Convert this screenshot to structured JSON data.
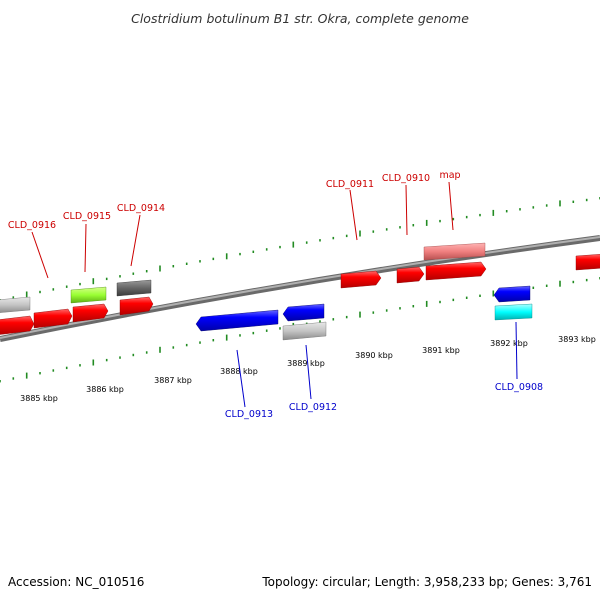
{
  "title": "Clostridium botulinum B1 str. Okra, complete genome",
  "footer": {
    "accession": "Accession: NC_010516",
    "topology": "Topology: circular; Length: 3,958,233 bp; Genes: 3,761"
  },
  "colors": {
    "top_strand_label": "#cc0000",
    "bottom_strand_label": "#0000cc",
    "tick": "#228b22",
    "backbone": "#808080",
    "red": "#ff0000",
    "blue": "#0000ff",
    "gray": "#bfbfbf",
    "dark_gray": "#606060",
    "lime": "#99ff33",
    "pink": "#f08080",
    "cyan": "#00ffff"
  },
  "kbp_labels": [
    "3885 kbp",
    "3886 kbp",
    "3887 kbp",
    "3888 kbp",
    "3889 kbp",
    "3890 kbp",
    "3891 kbp",
    "3892 kbp",
    "3893 kbp"
  ],
  "gene_labels_top": [
    "CLD_0916",
    "CLD_0915",
    "CLD_0914",
    "CLD_0911",
    "CLD_0910",
    "map"
  ],
  "gene_labels_bottom": [
    "CLD_0913",
    "CLD_0912",
    "CLD_0908"
  ]
}
